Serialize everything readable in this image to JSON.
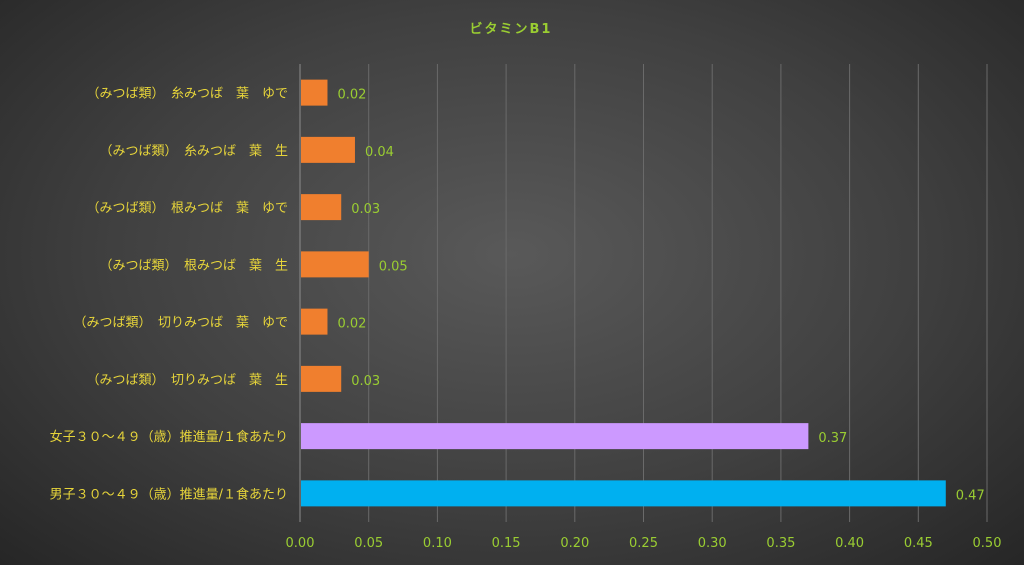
{
  "chart_data": {
    "type": "bar",
    "orientation": "horizontal",
    "title": "ビタミンB1",
    "categories": [
      "（みつば類）　糸みつば　葉　ゆで",
      "（みつば類）　糸みつば　葉　生",
      "（みつば類）　根みつば　葉　ゆで",
      "（みつば類）　根みつば　葉　生",
      "（みつば類）　切りみつば　葉　ゆで",
      "（みつば類）　切りみつば　葉　生",
      "女子３０～４９（歳）推進量/１食あたり",
      "男子３０～４９（歳）推進量/１食あたり"
    ],
    "values": [
      0.02,
      0.04,
      0.03,
      0.05,
      0.02,
      0.03,
      0.37,
      0.47
    ],
    "value_labels": [
      "0.02",
      "0.04",
      "0.03",
      "0.05",
      "0.02",
      "0.03",
      "0.37",
      "0.47"
    ],
    "bar_colors": [
      "#F07F2E",
      "#F07F2E",
      "#F07F2E",
      "#F07F2E",
      "#F07F2E",
      "#F07F2E",
      "#CC99FF",
      "#00B0F0"
    ],
    "xlim": [
      0,
      0.5
    ],
    "xticks": [
      "0.00",
      "0.05",
      "0.10",
      "0.15",
      "0.20",
      "0.25",
      "0.30",
      "0.35",
      "0.40",
      "0.45",
      "0.50"
    ],
    "grid": true,
    "legend": "none"
  }
}
